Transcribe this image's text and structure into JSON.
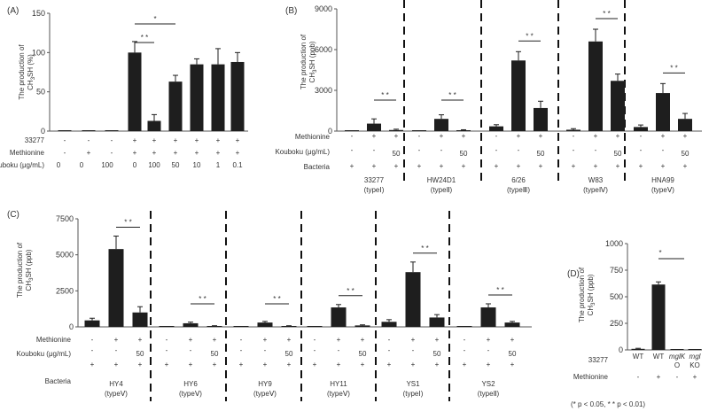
{
  "footnote": "(* p < 0.05, * * p < 0.01)",
  "chart_data": [
    {
      "panel": "(A)",
      "type": "bar",
      "ylabel": "The production of CH3SH (%)",
      "ylim": [
        0,
        150
      ],
      "yticks": [
        0,
        50,
        100,
        150
      ],
      "row_labels": [
        "33277",
        "Methionine",
        "Kouboku (μg/mL)"
      ],
      "conditions": [
        {
          "33277": "-",
          "Methionine": "-",
          "Kouboku (μg/mL)": "0"
        },
        {
          "33277": "-",
          "Methionine": "+",
          "Kouboku (μg/mL)": "0"
        },
        {
          "33277": "-",
          "Methionine": "-",
          "Kouboku (μg/mL)": "100"
        },
        {
          "33277": "+",
          "Methionine": "+",
          "Kouboku (μg/mL)": "0"
        },
        {
          "33277": "+",
          "Methionine": "+",
          "Kouboku (μg/mL)": "100"
        },
        {
          "33277": "+",
          "Methionine": "+",
          "Kouboku (μg/mL)": "50"
        },
        {
          "33277": "+",
          "Methionine": "+",
          "Kouboku (μg/mL)": "10"
        },
        {
          "33277": "+",
          "Methionine": "+",
          "Kouboku (μg/mL)": "1"
        },
        {
          "33277": "+",
          "Methionine": "+",
          "Kouboku (μg/mL)": "0.1"
        }
      ],
      "values": [
        0,
        0,
        0,
        100,
        13,
        63,
        85,
        85,
        88
      ],
      "errors": [
        0,
        0,
        0,
        14,
        8,
        8,
        7,
        20,
        12
      ],
      "significance": [
        {
          "from": 3,
          "to": 4,
          "label": "* *"
        },
        {
          "from": 3,
          "to": 5,
          "label": "*"
        }
      ]
    },
    {
      "panel": "(B)",
      "type": "bar",
      "ylabel": "The production of CH3SH (ppb)",
      "ylim": [
        0,
        9000
      ],
      "yticks": [
        0,
        3000,
        6000,
        9000
      ],
      "row_labels": [
        "Methionine",
        "Kouboku (μg/mL)",
        "Bacteria"
      ],
      "condition_rows": {
        "Methionine": [
          "-",
          "+",
          "+"
        ],
        "Kouboku (μg/mL)": [
          "-",
          "-",
          "50"
        ],
        "Bacteria": [
          "+",
          "+",
          "+"
        ]
      },
      "groups": [
        {
          "name": "33277",
          "type": "(typeⅠ)",
          "values": [
            0,
            550,
            80
          ],
          "errors": [
            0,
            350,
            60
          ],
          "sig": "* *"
        },
        {
          "name": "HW24D1",
          "type": "(typeⅡ)",
          "values": [
            0,
            900,
            60
          ],
          "errors": [
            0,
            300,
            40
          ],
          "sig": "* *"
        },
        {
          "name": "6/26",
          "type": "(typeⅢ)",
          "values": [
            350,
            5200,
            1700
          ],
          "errors": [
            120,
            650,
            500
          ],
          "sig": "* *"
        },
        {
          "name": "W83",
          "type": "(typeⅣ)",
          "values": [
            100,
            6600,
            3700
          ],
          "errors": [
            80,
            900,
            500
          ],
          "sig": "* *"
        },
        {
          "name": "HNA99",
          "type": "(typeⅤ)",
          "values": [
            300,
            2800,
            900
          ],
          "errors": [
            150,
            700,
            400
          ],
          "sig": "* *"
        }
      ]
    },
    {
      "panel": "(C)",
      "type": "bar",
      "ylabel": "The production of CH3SH (ppb)",
      "ylim": [
        0,
        7500
      ],
      "yticks": [
        0,
        2500,
        5000,
        7500
      ],
      "row_labels": [
        "Methionine",
        "Kouboku (μg/mL)",
        "Bacteria"
      ],
      "condition_rows": {
        "Methionine": [
          "-",
          "+",
          "+"
        ],
        "Kouboku (μg/mL)": [
          "-",
          "-",
          "50"
        ],
        "Bacteria": [
          "+",
          "+",
          "+"
        ]
      },
      "groups": [
        {
          "name": "HY4",
          "type": "(typeⅤ)",
          "values": [
            450,
            5400,
            1000
          ],
          "errors": [
            150,
            900,
            400
          ],
          "sig": "* *"
        },
        {
          "name": "HY6",
          "type": "(typeⅤ)",
          "values": [
            0,
            250,
            50
          ],
          "errors": [
            0,
            80,
            30
          ],
          "sig": "* *"
        },
        {
          "name": "HY9",
          "type": "(typeⅤ)",
          "values": [
            0,
            300,
            50
          ],
          "errors": [
            0,
            80,
            30
          ],
          "sig": "* *"
        },
        {
          "name": "HY11",
          "type": "(typeⅤ)",
          "values": [
            0,
            1350,
            100
          ],
          "errors": [
            0,
            200,
            40
          ],
          "sig": "* *"
        },
        {
          "name": "YS1",
          "type": "(typeⅠ)",
          "values": [
            350,
            3800,
            650
          ],
          "errors": [
            150,
            700,
            200
          ],
          "sig": "* *"
        },
        {
          "name": "YS2",
          "type": "(typeⅡ)",
          "values": [
            0,
            1350,
            300
          ],
          "errors": [
            0,
            250,
            80
          ],
          "sig": "* *"
        }
      ]
    },
    {
      "panel": "(D)",
      "type": "bar",
      "ylabel": "The production of CH3SH (ppb)",
      "ylim": [
        0,
        1000
      ],
      "yticks": [
        0,
        250,
        500,
        750,
        1000
      ],
      "categories": [
        "WT",
        "WT",
        "mglKO",
        "mglKO"
      ],
      "category_display": [
        [
          "WT"
        ],
        [
          "WT"
        ],
        [
          "mglK",
          "O"
        ],
        [
          "mgl",
          "KO"
        ]
      ],
      "row_labels": [
        "33277",
        "Methionine"
      ],
      "methionine": [
        "-",
        "+",
        "-",
        "+"
      ],
      "values": [
        10,
        615,
        0,
        0
      ],
      "errors": [
        5,
        25,
        0,
        0
      ],
      "significance": [
        {
          "from": 1,
          "to": 3,
          "label": "*"
        }
      ]
    }
  ]
}
